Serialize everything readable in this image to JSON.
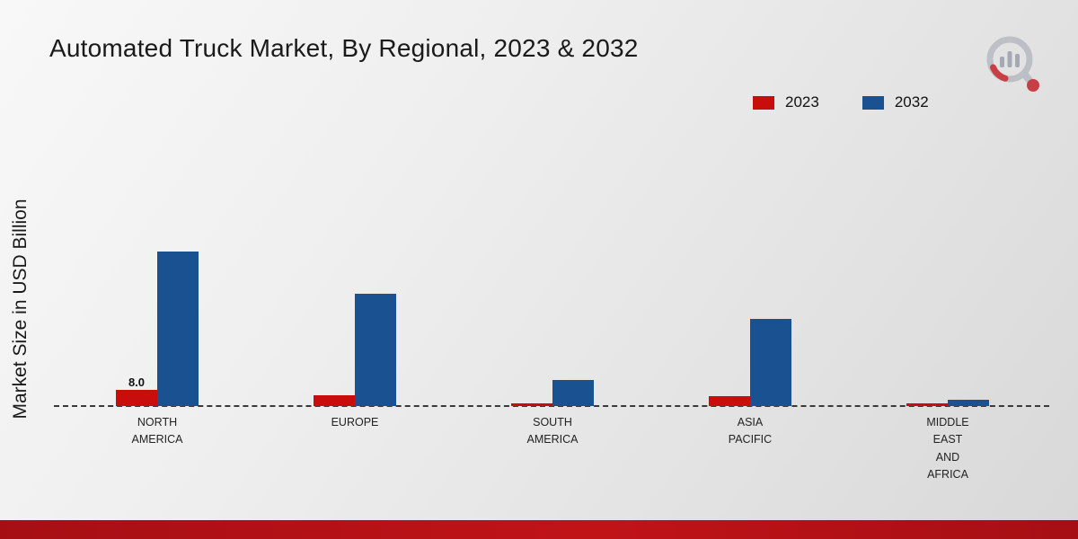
{
  "title": "Automated Truck Market, By Regional, 2023 & 2032",
  "legend": [
    {
      "label": "2023",
      "color": "#c90c0c"
    },
    {
      "label": "2032",
      "color": "#1a5291"
    }
  ],
  "footer_color": "#b01116",
  "chart_data": {
    "type": "bar",
    "title": "Automated Truck Market, By Regional, 2023 & 2032",
    "xlabel": "",
    "ylabel": "Market Size in USD Billion",
    "categories": [
      "NORTH\nAMERICA",
      "EUROPE",
      "SOUTH\nAMERICA",
      "ASIA\nPACIFIC",
      "MIDDLE\nEAST\nAND\nAFRICA"
    ],
    "series": [
      {
        "name": "2023",
        "color": "#c90c0c",
        "values": [
          8.0,
          5.5,
          1.5,
          5.0,
          1.2
        ]
      },
      {
        "name": "2032",
        "color": "#1a5291",
        "values": [
          78,
          57,
          13,
          44,
          3
        ]
      }
    ],
    "ylim": [
      0,
      80
    ],
    "grid": false,
    "legend_position": "top-right",
    "baseline_style": "dashed",
    "data_labels": [
      {
        "series": "2023",
        "category": "NORTH AMERICA",
        "text": "8.0"
      }
    ]
  }
}
